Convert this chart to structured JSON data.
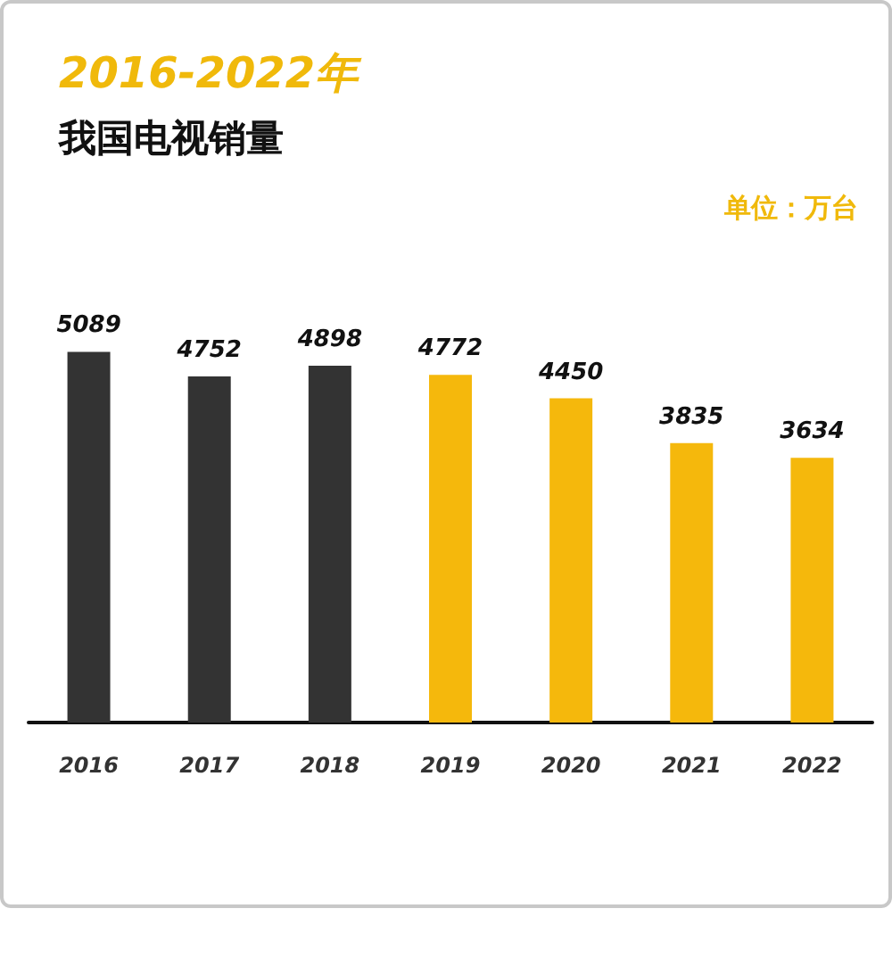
{
  "chart_data": {
    "type": "bar",
    "title": "2016-2022年",
    "subtitle": "我国电视销量",
    "ylabel": "单位：万台",
    "categories": [
      "2016",
      "2017",
      "2018",
      "2019",
      "2020",
      "2021",
      "2022"
    ],
    "values": [
      5089,
      4752,
      4898,
      4772,
      4450,
      3835,
      3634
    ],
    "colors": [
      "#333333",
      "#333333",
      "#333333",
      "#f5b80c",
      "#f5b80c",
      "#f5b80c",
      "#f5b80c"
    ],
    "data_labels": true
  }
}
